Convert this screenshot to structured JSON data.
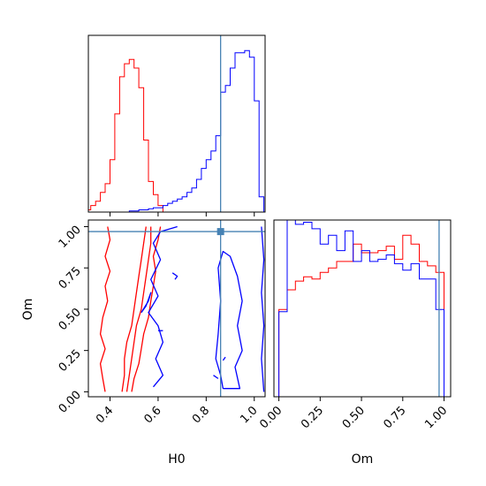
{
  "colors": {
    "series_a": "#ff0000",
    "series_b": "#0000ff",
    "truth": "#4682b4",
    "axes": "#000000"
  },
  "chart_data": {
    "type": "corner",
    "parameters": [
      "H0",
      "Om"
    ],
    "truth": {
      "H0": 0.86,
      "Om": 0.97
    },
    "series": [
      {
        "color": "red",
        "hist_H0": {
          "bin_edges": [
            0.3,
            0.32,
            0.34,
            0.36,
            0.38,
            0.4,
            0.42,
            0.44,
            0.46,
            0.48,
            0.5,
            0.52,
            0.54,
            0.56,
            0.58,
            0.6,
            0.62
          ],
          "counts": [
            0.01,
            0.03,
            0.05,
            0.09,
            0.13,
            0.24,
            0.45,
            0.62,
            0.68,
            0.7,
            0.66,
            0.57,
            0.33,
            0.14,
            0.08,
            0.03
          ]
        },
        "hist_Om": {
          "bin_edges": [
            0.0,
            0.05,
            0.1,
            0.15,
            0.2,
            0.25,
            0.3,
            0.35,
            0.4,
            0.45,
            0.5,
            0.55,
            0.6,
            0.65,
            0.7,
            0.75,
            0.8,
            0.85,
            0.9,
            0.95,
            1.0
          ],
          "counts": [
            0.4,
            0.49,
            0.53,
            0.55,
            0.54,
            0.57,
            0.59,
            0.62,
            0.62,
            0.7,
            0.66,
            0.66,
            0.67,
            0.69,
            0.63,
            0.74,
            0.7,
            0.62,
            0.6,
            0.57
          ]
        },
        "contours": {
          "outer_left": [
            [
              0.38,
              0.0
            ],
            [
              0.37,
              0.08
            ],
            [
              0.36,
              0.17
            ],
            [
              0.38,
              0.26
            ],
            [
              0.36,
              0.35
            ],
            [
              0.37,
              0.45
            ],
            [
              0.39,
              0.55
            ],
            [
              0.38,
              0.64
            ],
            [
              0.4,
              0.73
            ],
            [
              0.38,
              0.82
            ],
            [
              0.4,
              0.92
            ],
            [
              0.39,
              1.0
            ]
          ],
          "outer_right": [
            [
              0.49,
              0.0
            ],
            [
              0.5,
              0.08
            ],
            [
              0.52,
              0.17
            ],
            [
              0.53,
              0.26
            ],
            [
              0.54,
              0.35
            ],
            [
              0.56,
              0.45
            ],
            [
              0.57,
              0.55
            ],
            [
              0.58,
              0.64
            ],
            [
              0.59,
              0.73
            ],
            [
              0.58,
              0.82
            ],
            [
              0.6,
              0.92
            ],
            [
              0.61,
              1.0
            ]
          ],
          "inner_left": [
            [
              0.45,
              0.0
            ],
            [
              0.46,
              0.1
            ],
            [
              0.46,
              0.2
            ],
            [
              0.47,
              0.3
            ],
            [
              0.49,
              0.4
            ],
            [
              0.5,
              0.5
            ],
            [
              0.51,
              0.6
            ],
            [
              0.52,
              0.7
            ],
            [
              0.53,
              0.8
            ],
            [
              0.54,
              0.9
            ],
            [
              0.55,
              1.0
            ]
          ],
          "inner_right": [
            [
              0.47,
              0.0
            ],
            [
              0.48,
              0.1
            ],
            [
              0.49,
              0.2
            ],
            [
              0.5,
              0.3
            ],
            [
              0.51,
              0.4
            ],
            [
              0.53,
              0.5
            ],
            [
              0.54,
              0.6
            ],
            [
              0.55,
              0.7
            ],
            [
              0.56,
              0.8
            ],
            [
              0.57,
              0.9
            ],
            [
              0.57,
              1.0
            ]
          ]
        }
      },
      {
        "color": "blue",
        "hist_H0": {
          "bin_edges": [
            0.3,
            0.32,
            0.34,
            0.36,
            0.38,
            0.4,
            0.42,
            0.44,
            0.46,
            0.48,
            0.5,
            0.52,
            0.54,
            0.56,
            0.58,
            0.6,
            0.62,
            0.64,
            0.66,
            0.68,
            0.7,
            0.72,
            0.74,
            0.76,
            0.78,
            0.8,
            0.82,
            0.84,
            0.86,
            0.88,
            0.9,
            0.92,
            0.94,
            0.96,
            0.98,
            1.0,
            1.02,
            1.04
          ],
          "counts": [
            0,
            0,
            0,
            0,
            0,
            0,
            0,
            0,
            0,
            0.005,
            0.005,
            0.01,
            0.01,
            0.015,
            0.02,
            0.02,
            0.03,
            0.04,
            0.05,
            0.06,
            0.07,
            0.09,
            0.11,
            0.15,
            0.2,
            0.24,
            0.28,
            0.35,
            0.55,
            0.58,
            0.66,
            0.73,
            0.73,
            0.74,
            0.71,
            0.51,
            0.07
          ]
        },
        "hist_Om": {
          "bin_edges": [
            0.0,
            0.05,
            0.1,
            0.15,
            0.2,
            0.25,
            0.3,
            0.35,
            0.4,
            0.45,
            0.5,
            0.55,
            0.6,
            0.65,
            0.7,
            0.75,
            0.8,
            0.85,
            0.9,
            0.95,
            1.0
          ],
          "counts": [
            0.39,
            0.88,
            0.79,
            0.8,
            0.77,
            0.7,
            0.74,
            0.67,
            0.76,
            0.62,
            0.67,
            0.62,
            0.63,
            0.65,
            0.61,
            0.58,
            0.61,
            0.54,
            0.54,
            0.4
          ]
        },
        "contours": {
          "outer": [
            [
              0.58,
              0.03
            ],
            [
              0.62,
              0.1
            ],
            [
              0.59,
              0.2
            ],
            [
              0.62,
              0.3
            ],
            [
              0.6,
              0.4
            ],
            [
              0.56,
              0.48
            ],
            [
              0.6,
              0.58
            ],
            [
              0.57,
              0.68
            ],
            [
              0.61,
              0.8
            ],
            [
              0.58,
              0.9
            ],
            [
              0.61,
              0.97
            ],
            [
              0.68,
              1.0
            ]
          ],
          "inner_right": [
            [
              0.87,
              0.02
            ],
            [
              0.94,
              0.02
            ],
            [
              0.92,
              0.15
            ],
            [
              0.95,
              0.25
            ],
            [
              0.93,
              0.4
            ],
            [
              0.95,
              0.55
            ],
            [
              0.93,
              0.7
            ],
            [
              0.9,
              0.82
            ],
            [
              0.87,
              0.85
            ],
            [
              0.85,
              0.75
            ],
            [
              0.86,
              0.55
            ],
            [
              0.85,
              0.35
            ],
            [
              0.84,
              0.2
            ],
            [
              0.86,
              0.1
            ],
            [
              0.87,
              0.02
            ]
          ],
          "right_edge": [
            [
              1.04,
              0.0
            ],
            [
              1.03,
              0.2
            ],
            [
              1.04,
              0.4
            ],
            [
              1.03,
              0.6
            ],
            [
              1.04,
              0.8
            ],
            [
              1.03,
              1.0
            ]
          ],
          "blob_left": [
            [
              0.53,
              0.48
            ],
            [
              0.56,
              0.55
            ],
            [
              0.57,
              0.6
            ],
            [
              0.55,
              0.52
            ],
            [
              0.53,
              0.48
            ]
          ],
          "small_dash": [
            [
              0.6,
              0.37
            ],
            [
              0.62,
              0.37
            ]
          ],
          "small_right": [
            [
              0.66,
              0.72
            ],
            [
              0.68,
              0.7
            ],
            [
              0.67,
              0.68
            ]
          ],
          "small_tick": [
            [
              0.83,
              0.1
            ],
            [
              0.85,
              0.08
            ]
          ],
          "tiny": [
            [
              0.87,
              0.19
            ],
            [
              0.88,
              0.21
            ]
          ]
        }
      }
    ]
  },
  "labels": {
    "x_H0": "H0",
    "x_Om": "Om",
    "y_Om": "Om",
    "h0_ticks": [
      "0.4",
      "0.6",
      "0.8",
      "1.0"
    ],
    "h0_tick_values": [
      0.4,
      0.6,
      0.8,
      1.0
    ],
    "om_ticks": [
      "0.00",
      "0.25",
      "0.50",
      "0.75",
      "1.00"
    ],
    "om_tick_values": [
      0.0,
      0.25,
      0.5,
      0.75,
      1.0
    ]
  }
}
